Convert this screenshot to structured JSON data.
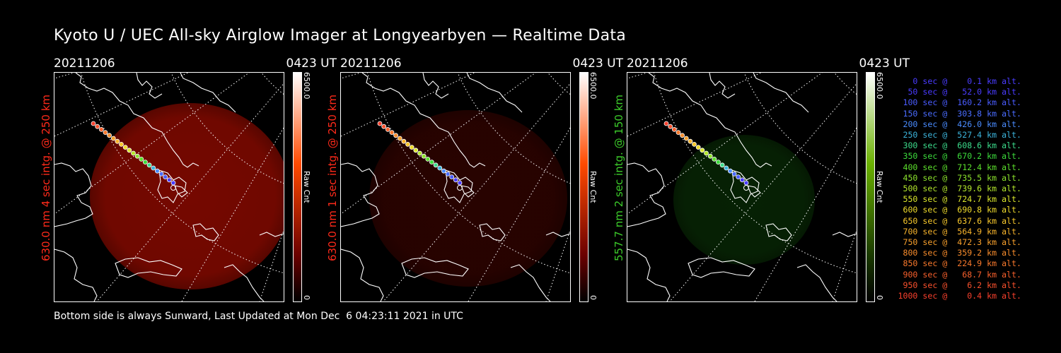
{
  "title": "Kyoto U / UEC All-sky Airglow Imager at Longyearbyen — Realtime Data",
  "panels": [
    {
      "date": "20211206",
      "time": "0423 UT",
      "vlabel": "630.0 nm 4 sec intg. @ 250 km",
      "label_color": "#ff2a1a",
      "glow_color": "#8a0a00",
      "glow_opacity": 0.85,
      "bar_top": "#ffffff",
      "bar_mid": "#ff4a00",
      "bar_low": "#6a0000",
      "cbar_max": "6500.0",
      "cbar_min": "0",
      "cbar_unit": "Raw Cnt"
    },
    {
      "date": "20211206",
      "time": "0423 UT",
      "vlabel": "630.0 nm 1 sec intg. @ 250 km",
      "label_color": "#ff2a1a",
      "glow_color": "#3a0400",
      "glow_opacity": 0.7,
      "bar_top": "#ffffff",
      "bar_mid": "#ff4a00",
      "bar_low": "#6a0000",
      "cbar_max": "6500.0",
      "cbar_min": "0",
      "cbar_unit": "Raw Cnt"
    },
    {
      "date": "20211206",
      "time": "0423 UT",
      "vlabel": "557.7 nm 2 sec intg. @ 150 km",
      "label_color": "#3ccc2a",
      "glow_color": "#0a3306",
      "glow_opacity": 0.65,
      "bar_top": "#ffffff",
      "bar_mid": "#6ab000",
      "bar_low": "#1a3a00",
      "cbar_max": "6500.0",
      "cbar_min": "0",
      "cbar_unit": "Raw Cnt"
    }
  ],
  "legend": [
    {
      "text": "   0 sec @    0.1 km alt.",
      "color": "#4a3cff"
    },
    {
      "text": "  50 sec @   52.0 km alt.",
      "color": "#4a3cff"
    },
    {
      "text": " 100 sec @  160.2 km alt.",
      "color": "#4a5cff"
    },
    {
      "text": " 150 sec @  303.8 km alt.",
      "color": "#4a6cff"
    },
    {
      "text": " 200 sec @  426.0 km alt.",
      "color": "#4a8cff"
    },
    {
      "text": " 250 sec @  527.4 km alt.",
      "color": "#3cb4dc"
    },
    {
      "text": " 300 sec @  608.6 km alt.",
      "color": "#3cdc8c"
    },
    {
      "text": " 350 sec @  670.2 km alt.",
      "color": "#3cdc3c"
    },
    {
      "text": " 400 sec @  712.4 km alt.",
      "color": "#5ce02c"
    },
    {
      "text": " 450 sec @  735.5 km alt.",
      "color": "#8ce42c"
    },
    {
      "text": " 500 sec @  739.6 km alt.",
      "color": "#b4e82c"
    },
    {
      "text": " 550 sec @  724.7 km alt.",
      "color": "#dce82c"
    },
    {
      "text": " 600 sec @  690.8 km alt.",
      "color": "#f0dc2c"
    },
    {
      "text": " 650 sec @  637.6 km alt.",
      "color": "#f8c82c"
    },
    {
      "text": " 700 sec @  564.9 km alt.",
      "color": "#f8b42c"
    },
    {
      "text": " 750 sec @  472.3 km alt.",
      "color": "#f8a02c"
    },
    {
      "text": " 800 sec @  359.2 km alt.",
      "color": "#f88c2c"
    },
    {
      "text": " 850 sec @  224.9 km alt.",
      "color": "#f8782c"
    },
    {
      "text": " 900 sec @   68.7 km alt.",
      "color": "#f8602c"
    },
    {
      "text": " 950 sec @    6.2 km alt.",
      "color": "#f8502c"
    },
    {
      "text": "1000 sec @    0.4 km alt.",
      "color": "#f8402c"
    }
  ],
  "footer": "Bottom side is always Sunward, Last Updated at Mon Dec  6 04:23:11 2021 in UTC"
}
